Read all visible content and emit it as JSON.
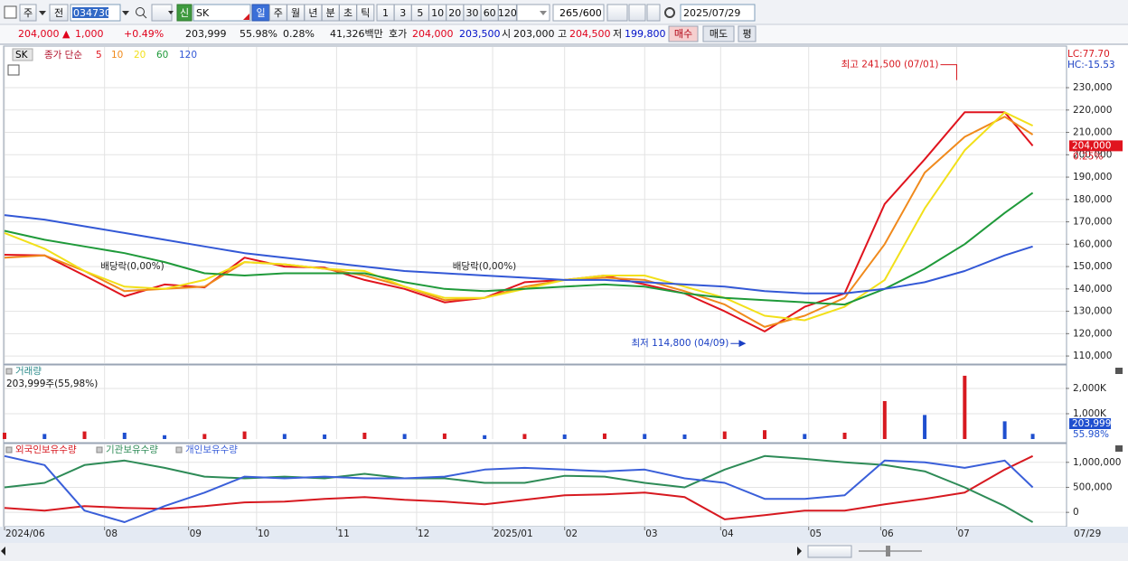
{
  "toolbar": {
    "chart_type": "주",
    "prev": "전",
    "code": "034730",
    "new_badge": "신",
    "name": "SK",
    "periods": [
      "일",
      "주",
      "월",
      "년",
      "분",
      "초",
      "틱"
    ],
    "intervals": [
      "1",
      "3",
      "5",
      "10",
      "20",
      "30",
      "60",
      "120"
    ],
    "count": "265",
    "max_count": "/600",
    "date": "2025/07/29"
  },
  "quote_bar": {
    "price": "204,000 ▲",
    "change": "1,000",
    "change_rate": "+0.49%",
    "volume": "203,999",
    "volume_ratio": "55.98%",
    "turnover": "0.28%",
    "amount": "41,326백만",
    "quote_label": "호가",
    "ask": "204,000",
    "bid": "203,500",
    "open_label": "시",
    "open": "203,000",
    "high_label": "고",
    "high": "204,500",
    "low_label": "저",
    "low": "199,800",
    "buy": "매수",
    "sell": "매도",
    "avg": "평"
  },
  "chart_data": [
    {
      "type": "line",
      "title": "SK",
      "legend_title": "종가 단순",
      "x": [
        0,
        10,
        20,
        30,
        40,
        50,
        60,
        70,
        80,
        90,
        100,
        110,
        120,
        130,
        140,
        150,
        160,
        170,
        180,
        190,
        200,
        210,
        220,
        230,
        240,
        250,
        257
      ],
      "xlim": [
        0,
        265
      ],
      "series": [
        {
          "name": "5",
          "color": "#e0141e",
          "values": [
            155300,
            155000,
            146000,
            136700,
            142000,
            140700,
            154000,
            150000,
            149500,
            144000,
            140000,
            134000,
            136000,
            143000,
            144000,
            146000,
            142000,
            138000,
            130000,
            121000,
            132000,
            138000,
            178000,
            198000,
            219000,
            219000,
            204000
          ]
        },
        {
          "name": "10",
          "color": "#f08a1c",
          "values": [
            154000,
            155000,
            148000,
            139000,
            140000,
            141000,
            152000,
            151000,
            149000,
            146000,
            141000,
            135000,
            136000,
            141000,
            144000,
            145000,
            144000,
            139000,
            133000,
            123000,
            128000,
            136000,
            160000,
            192000,
            208000,
            217000,
            209000
          ]
        },
        {
          "name": "20",
          "color": "#f2e01a",
          "values": [
            165000,
            158000,
            148000,
            141000,
            140000,
            144000,
            152000,
            151000,
            149000,
            148000,
            141000,
            136000,
            136000,
            140000,
            144000,
            146000,
            146000,
            141000,
            136000,
            128000,
            126000,
            132000,
            144000,
            176000,
            202000,
            219000,
            213000
          ]
        },
        {
          "name": "60",
          "color": "#1f9a3a",
          "values": [
            166000,
            162000,
            159000,
            156000,
            152000,
            147000,
            146000,
            147000,
            147000,
            147000,
            143000,
            140000,
            139000,
            140000,
            141000,
            142000,
            141000,
            138000,
            136000,
            135000,
            134000,
            133000,
            140000,
            149000,
            160000,
            174000,
            183000
          ]
        },
        {
          "name": "120",
          "color": "#3358d6",
          "values": [
            173000,
            171000,
            168000,
            165000,
            162000,
            159000,
            156000,
            154000,
            152000,
            150000,
            148000,
            147000,
            146000,
            145000,
            144000,
            144000,
            143000,
            142000,
            141000,
            139000,
            138000,
            138000,
            140000,
            143000,
            148000,
            155000,
            159000
          ]
        }
      ],
      "ylim": [
        106800,
        248200
      ],
      "yticks": [
        {
          "value": 110000,
          "label": "110,000"
        },
        {
          "value": 120000,
          "label": "120,000"
        },
        {
          "value": 130000,
          "label": "130,000"
        },
        {
          "value": 140000,
          "label": "140,000"
        },
        {
          "value": 150000,
          "label": "150,000"
        },
        {
          "value": 160000,
          "label": "160,000"
        },
        {
          "value": 170000,
          "label": "170,000"
        },
        {
          "value": 180000,
          "label": "180,000"
        },
        {
          "value": 190000,
          "label": "190,000"
        },
        {
          "value": 200000,
          "label": "200,000"
        },
        {
          "value": 210000,
          "label": "210,000"
        },
        {
          "value": 220000,
          "label": "220,000"
        },
        {
          "value": 230000,
          "label": "230,000"
        }
      ],
      "grid": true,
      "annotations": [
        {
          "text": "최고 241,500 (07/01)",
          "x": 238,
          "y": 241500,
          "color": "#d71920"
        },
        {
          "text": "최저 114,800 (04/09)",
          "x": 186,
          "y": 114800,
          "color": "#1a3fc4"
        },
        {
          "text": "배당락(0,00%)",
          "x": 24,
          "y": 150000,
          "color": "#222222"
        },
        {
          "text": "배당락(0,00%)",
          "x": 112,
          "y": 150000,
          "color": "#222222"
        }
      ],
      "indicator_labels": [
        {
          "text": "LC:77.70",
          "color": "#d71920"
        },
        {
          "text": "HC:-15.53",
          "color": "#1a3fc4"
        }
      ],
      "last_price_label": "204,000",
      "last_change_label": "0.25%"
    },
    {
      "type": "bar",
      "title": "거래량",
      "subtitle": "203,999주(55,98%)",
      "x": [
        0,
        10,
        20,
        30,
        40,
        50,
        60,
        70,
        80,
        90,
        100,
        110,
        120,
        130,
        140,
        150,
        160,
        170,
        180,
        190,
        200,
        210,
        220,
        230,
        240,
        250,
        257
      ],
      "xlim": [
        0,
        265
      ],
      "values": [
        250000,
        200000,
        300000,
        250000,
        150000,
        200000,
        300000,
        200000,
        180000,
        250000,
        200000,
        220000,
        150000,
        200000,
        180000,
        220000,
        200000,
        180000,
        300000,
        350000,
        200000,
        250000,
        1500000,
        950000,
        2500000,
        700000,
        203999
      ],
      "color": "#d71920",
      "down_color": "#1f4fcf",
      "ylim": [
        0,
        2890000
      ],
      "yticks": [
        {
          "value": 1000000,
          "label": "1,000K"
        },
        {
          "value": 2000000,
          "label": "2,000K"
        }
      ],
      "grid": true,
      "last_value_label": "203,999",
      "last_ratio_label": "55.98%"
    },
    {
      "type": "line",
      "x": [
        0,
        10,
        20,
        30,
        40,
        50,
        60,
        70,
        80,
        90,
        100,
        110,
        120,
        130,
        140,
        150,
        160,
        170,
        180,
        190,
        200,
        210,
        220,
        230,
        240,
        250,
        257
      ],
      "xlim": [
        0,
        265
      ],
      "series": [
        {
          "name": "외국인보유수량",
          "color": "#d71920",
          "values": [
            90000,
            36000,
            125000,
            90000,
            70000,
            125000,
            200000,
            215000,
            270000,
            305000,
            250000,
            215000,
            160000,
            250000,
            340000,
            360000,
            395000,
            305000,
            -140000,
            -55000,
            36000,
            36000,
            160000,
            270000,
            395000,
            855000,
            1125000
          ]
        },
        {
          "name": "기관보유수량",
          "color": "#2e8b57",
          "values": [
            500000,
            590000,
            945000,
            1035000,
            890000,
            715000,
            680000,
            715000,
            680000,
            770000,
            680000,
            680000,
            590000,
            590000,
            730000,
            715000,
            590000,
            500000,
            855000,
            1125000,
            1070000,
            1000000,
            945000,
            820000,
            500000,
            125000,
            -195000
          ]
        },
        {
          "name": "개인보유수량",
          "color": "#3a5fd9",
          "values": [
            1125000,
            945000,
            36000,
            -195000,
            125000,
            395000,
            715000,
            680000,
            715000,
            680000,
            680000,
            715000,
            855000,
            890000,
            855000,
            820000,
            855000,
            680000,
            590000,
            270000,
            270000,
            340000,
            1035000,
            1000000,
            890000,
            1035000,
            500000
          ]
        }
      ],
      "ylim": [
        -286000,
        1357000
      ],
      "yticks": [
        0,
        {
          "value": 500000,
          "label": "500,000"
        },
        {
          "value": 1000000,
          "label": "1,000,000"
        }
      ],
      "grid": true,
      "xticks": [
        {
          "value": 0,
          "label": "2024/06"
        },
        {
          "value": 25,
          "label": "08"
        },
        {
          "value": 46,
          "label": "09"
        },
        {
          "value": 63,
          "label": "10"
        },
        {
          "value": 83,
          "label": "11"
        },
        {
          "value": 103,
          "label": "12"
        },
        {
          "value": 122,
          "label": "2025/01"
        },
        {
          "value": 140,
          "label": "02"
        },
        {
          "value": 160,
          "label": "03"
        },
        {
          "value": 179,
          "label": "04"
        },
        {
          "value": 201,
          "label": "05"
        },
        {
          "value": 219,
          "label": "06"
        },
        {
          "value": 238,
          "label": "07"
        }
      ],
      "x_end_label": "07/29"
    }
  ]
}
